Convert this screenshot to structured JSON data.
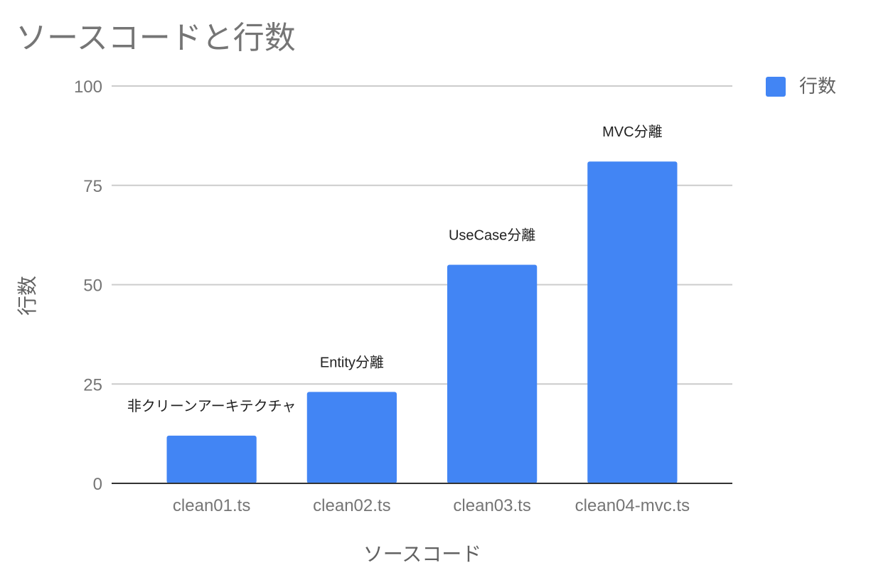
{
  "chart_data": {
    "type": "bar",
    "title": "ソースコードと行数",
    "xlabel": "ソースコード",
    "ylabel": "行数",
    "categories": [
      "clean01.ts",
      "clean02.ts",
      "clean03.ts",
      "clean04-mvc.ts"
    ],
    "series": [
      {
        "name": "行数",
        "values": [
          12,
          23,
          55,
          81
        ],
        "color": "#4285F4"
      }
    ],
    "annotations": [
      "非クリーンアーキテクチャ",
      "Entity分離",
      "UseCase分離",
      "MVC分離"
    ],
    "y_ticks": [
      0,
      25,
      50,
      75,
      100
    ],
    "ylim": [
      0,
      100
    ],
    "grid": true,
    "legend_position": "top-right"
  }
}
